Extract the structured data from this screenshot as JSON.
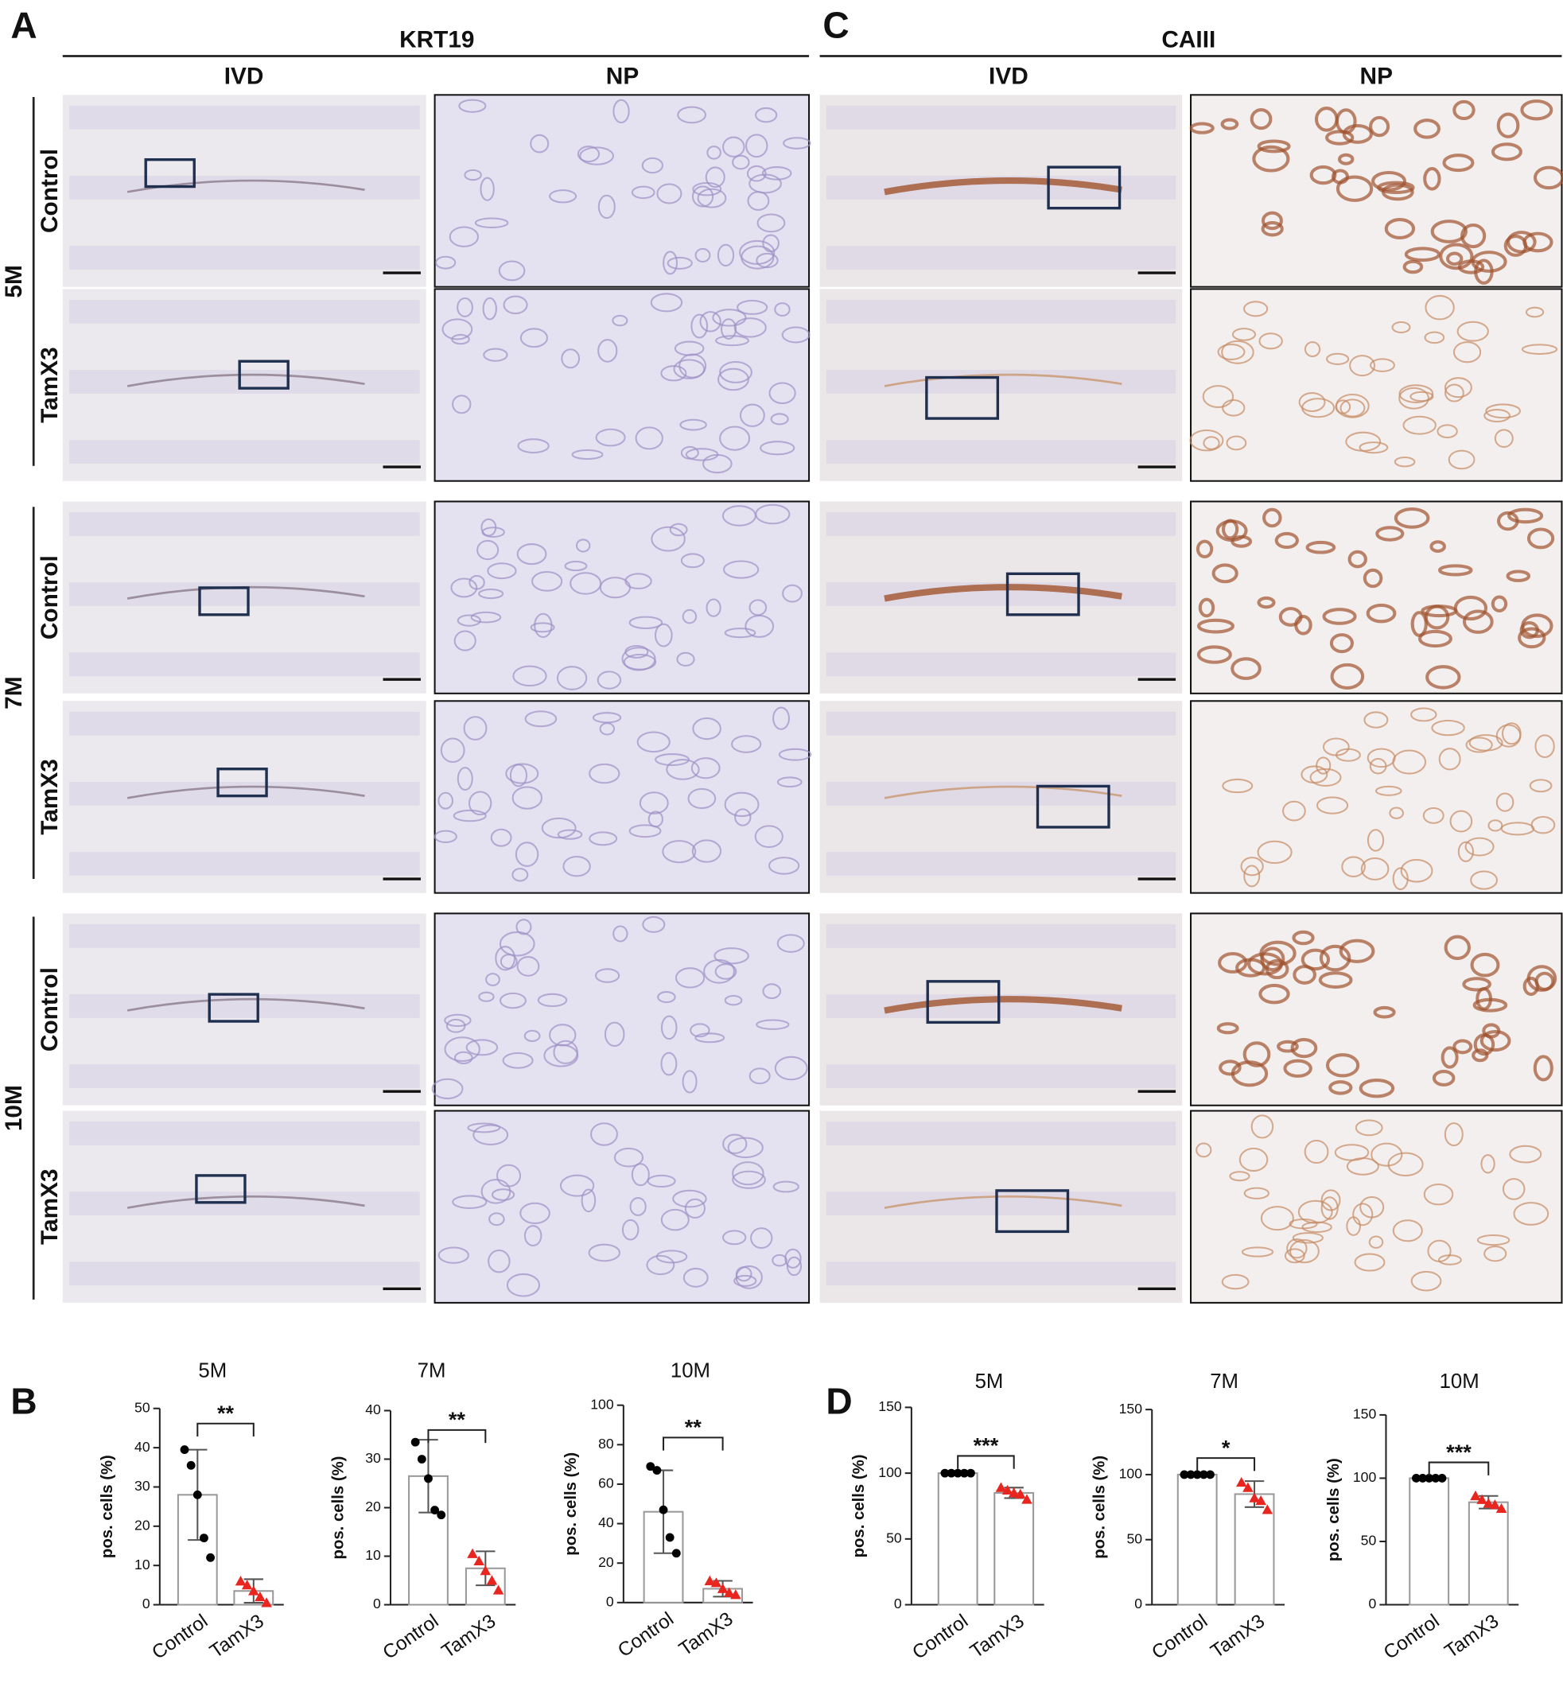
{
  "panel_labels": [
    "A",
    "B",
    "C",
    "D"
  ],
  "stains": [
    "KRT19",
    "CAIII"
  ],
  "columns": [
    "IVD",
    "NP"
  ],
  "ages": [
    "5M",
    "7M",
    "10M"
  ],
  "groups": [
    "Control",
    "TamX3"
  ],
  "chart_data": [
    {
      "type": "bar",
      "title": "5M",
      "y_label": "pos. cells (%)",
      "categories": [
        "Control",
        "TamX3"
      ],
      "values": [
        28,
        3.5
      ],
      "errors": [
        11.5,
        3
      ],
      "points": [
        [
          39.5,
          35.5,
          28,
          17,
          12
        ],
        [
          6,
          5,
          3.5,
          2,
          0.5
        ]
      ],
      "point_colors": [
        "#000000",
        "#e8251f"
      ],
      "significance": "**",
      "ylim": [
        0,
        50
      ],
      "yticks": [
        0,
        10,
        20,
        30,
        40,
        50
      ]
    },
    {
      "type": "bar",
      "title": "7M",
      "y_label": "pos. cells (%)",
      "categories": [
        "Control",
        "TamX3"
      ],
      "values": [
        26.5,
        7.5
      ],
      "errors": [
        7.5,
        3.5
      ],
      "points": [
        [
          33.5,
          30,
          26,
          19.5,
          18.5
        ],
        [
          10.5,
          9,
          7,
          5,
          3
        ]
      ],
      "point_colors": [
        "#000000",
        "#e8251f"
      ],
      "significance": "**",
      "ylim": [
        0,
        40
      ],
      "yticks": [
        0,
        10,
        20,
        30,
        40
      ]
    },
    {
      "type": "bar",
      "title": "10M",
      "y_label": "pos. cells (%)",
      "categories": [
        "Control",
        "TamX3"
      ],
      "values": [
        46,
        7
      ],
      "errors": [
        21,
        4
      ],
      "points": [
        [
          69,
          67,
          47,
          33,
          25
        ],
        [
          11,
          10,
          7,
          5,
          4
        ]
      ],
      "point_colors": [
        "#000000",
        "#e8251f"
      ],
      "significance": "**",
      "ylim": [
        0,
        100
      ],
      "yticks": [
        0,
        20,
        40,
        60,
        80,
        100
      ]
    },
    {
      "type": "bar",
      "title": "5M",
      "y_label": "pos. cells (%)",
      "categories": [
        "Control",
        "TamX3"
      ],
      "values": [
        100,
        85
      ],
      "errors": [
        0,
        4
      ],
      "points": [
        [
          100,
          100,
          100,
          100,
          100
        ],
        [
          89,
          87,
          85,
          84,
          80
        ]
      ],
      "point_colors": [
        "#000000",
        "#e8251f"
      ],
      "significance": "***",
      "ylim": [
        0,
        150
      ],
      "yticks": [
        0,
        50,
        100,
        150
      ]
    },
    {
      "type": "bar",
      "title": "7M",
      "y_label": "pos. cells (%)",
      "categories": [
        "Control",
        "TamX3"
      ],
      "values": [
        100,
        85
      ],
      "errors": [
        0,
        10
      ],
      "points": [
        [
          100,
          100,
          100,
          100,
          100
        ],
        [
          94,
          90,
          82,
          80,
          73
        ]
      ],
      "point_colors": [
        "#000000",
        "#e8251f"
      ],
      "significance": "*",
      "ylim": [
        0,
        150
      ],
      "yticks": [
        0,
        50,
        100,
        150
      ]
    },
    {
      "type": "bar",
      "title": "10M",
      "y_label": "pos. cells (%)",
      "categories": [
        "Control",
        "TamX3"
      ],
      "values": [
        100,
        81
      ],
      "errors": [
        0,
        5
      ],
      "points": [
        [
          100,
          100,
          100,
          100,
          100
        ],
        [
          86,
          83,
          80,
          79,
          76
        ]
      ],
      "point_colors": [
        "#000000",
        "#e8251f"
      ],
      "significance": "***",
      "ylim": [
        0,
        150
      ],
      "yticks": [
        0,
        50,
        100,
        150
      ]
    }
  ]
}
